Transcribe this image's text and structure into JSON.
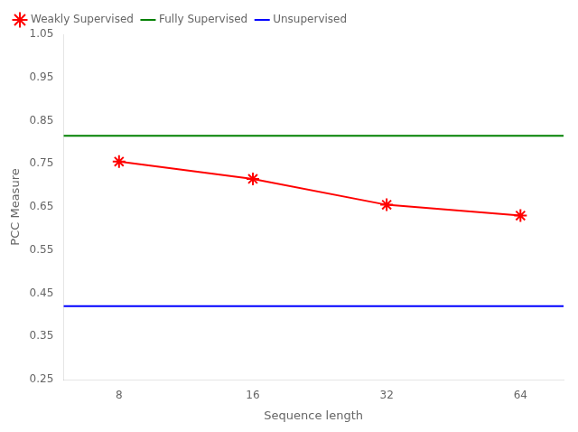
{
  "chart_data": {
    "type": "line",
    "x": [
      8,
      16,
      32,
      64
    ],
    "series": [
      {
        "name": "Weakly Supervised",
        "color": "red",
        "marker": "star",
        "values": [
          0.755,
          0.715,
          0.655,
          0.63
        ]
      },
      {
        "name": "Fully Supervised",
        "color": "green",
        "type": "hline",
        "value": 0.815
      },
      {
        "name": "Unsupervised",
        "color": "blue",
        "type": "hline",
        "value": 0.42
      }
    ],
    "xlabel": "Sequence length",
    "ylabel": "PCC Measure",
    "log": "x",
    "xlim": [
      6,
      80
    ],
    "xticks": [
      8,
      16,
      32,
      64
    ],
    "ylim": [
      0.25,
      1.05
    ],
    "yticks": [
      0.25,
      0.35,
      0.45,
      0.55,
      0.65,
      0.75,
      0.85,
      0.95,
      1.05
    ],
    "grid": false,
    "legend": "upper left"
  }
}
